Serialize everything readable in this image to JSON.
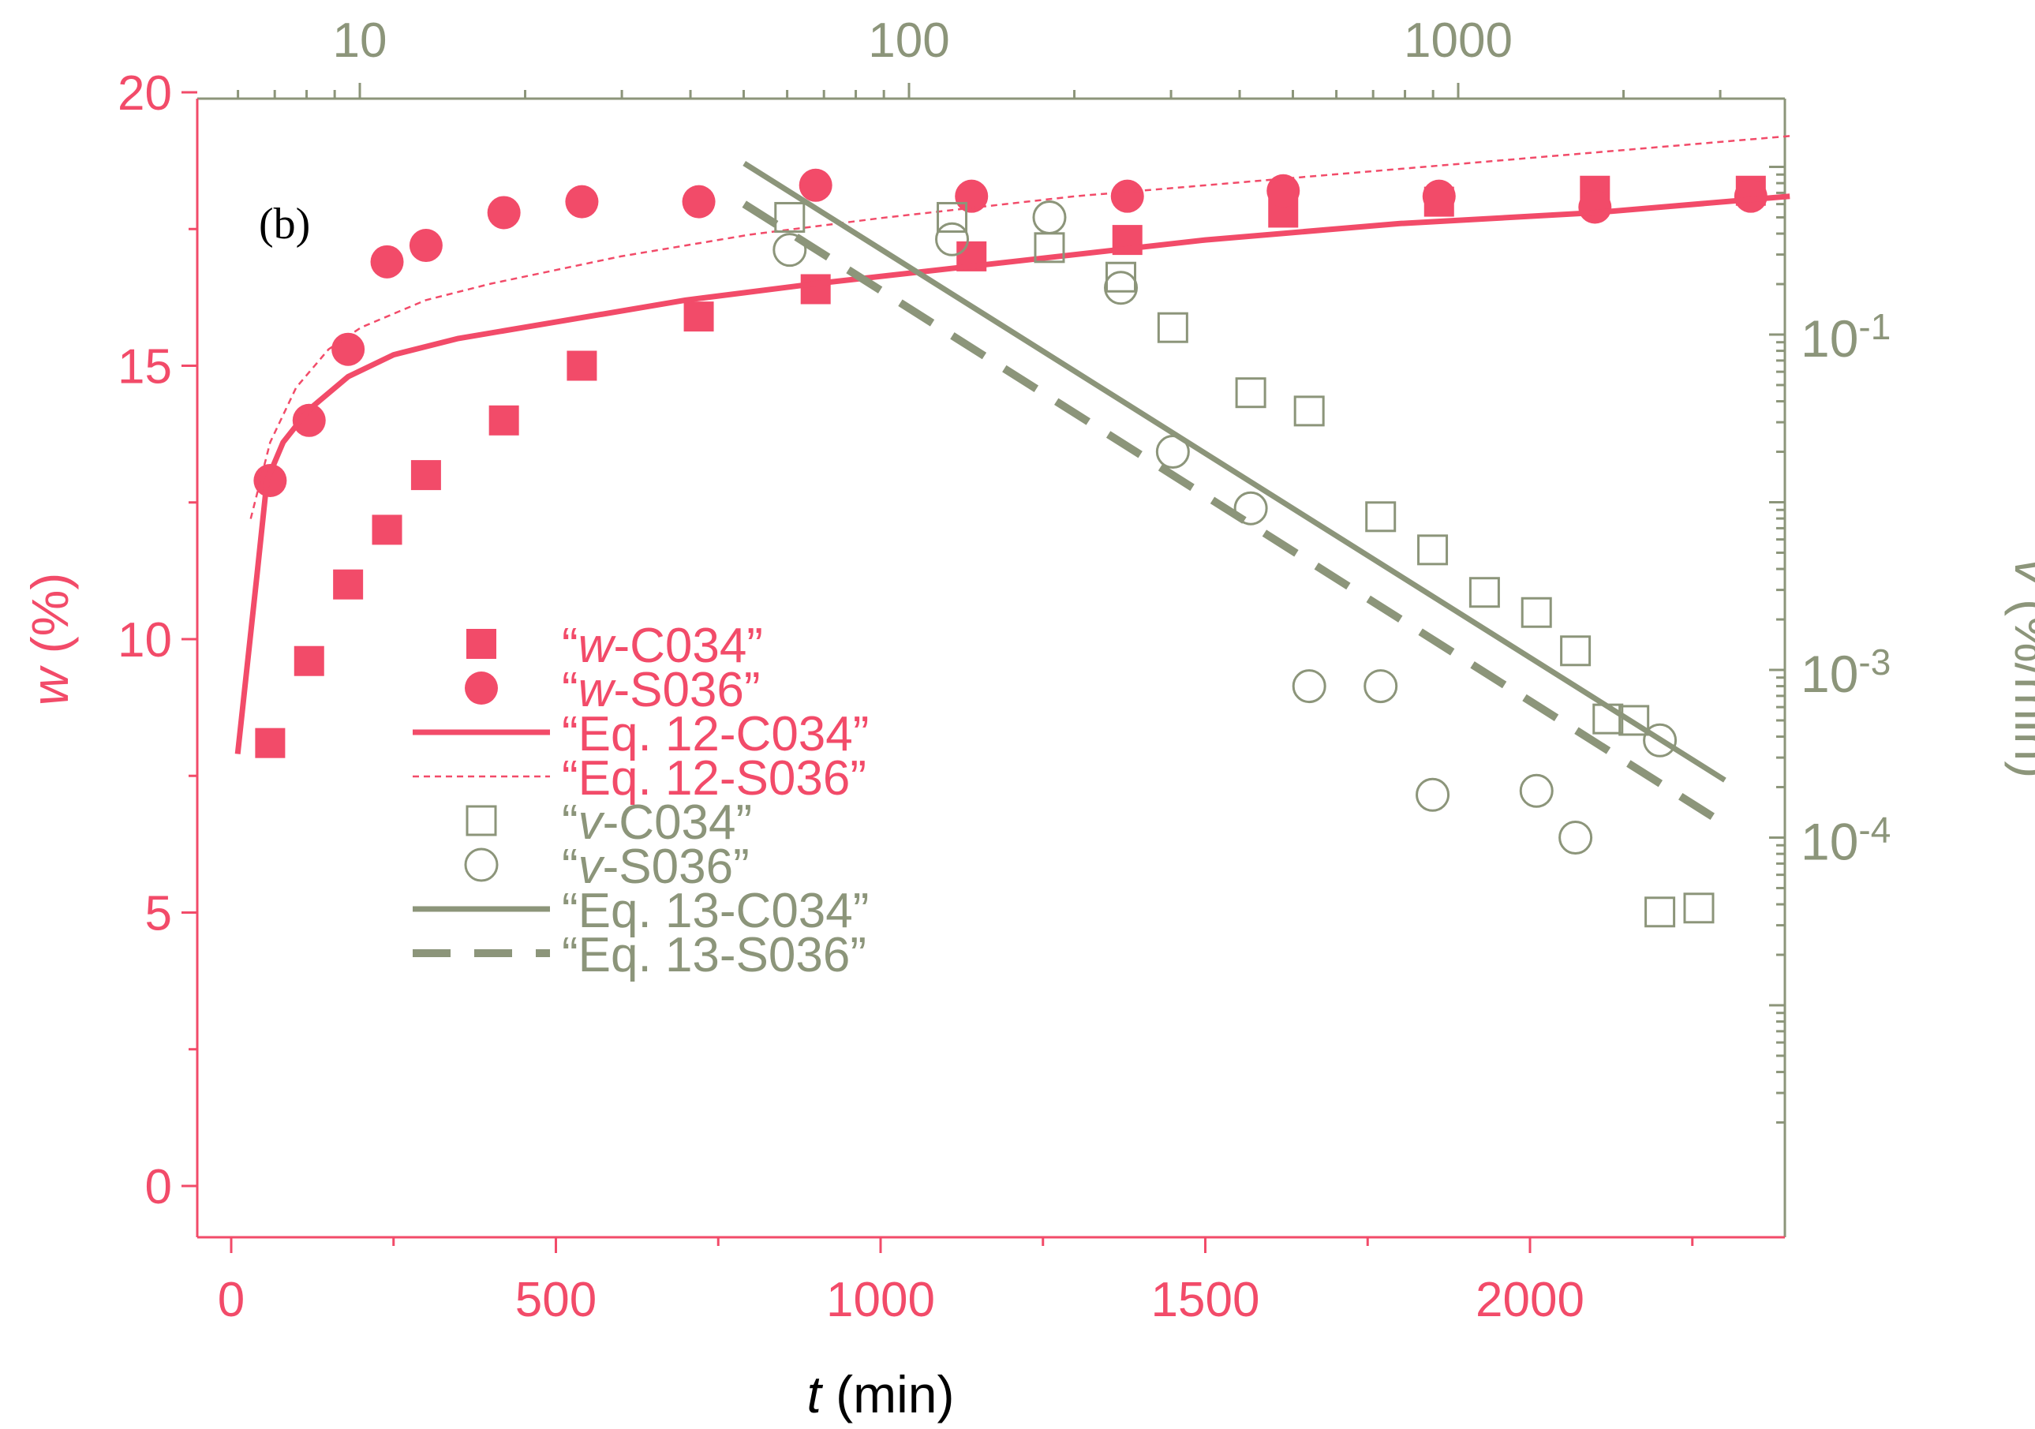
{
  "colors": {
    "pink": "#f24b69",
    "olive": "#8c957a",
    "frame": "#8c957a",
    "black": "#000000"
  },
  "chart_data": {
    "type": "scatter",
    "panel_label": "(b)",
    "x_axis": {
      "label_italic": "t",
      "label_rest": " (min)",
      "range": [
        -50,
        2400
      ],
      "ticks": [
        0,
        500,
        1000,
        1500,
        2000
      ],
      "tick_labels": [
        "0",
        "500",
        "1000",
        "1500",
        "2000"
      ]
    },
    "top_axis": {
      "scale": "log",
      "ticks": [
        10,
        100,
        1000
      ],
      "tick_labels": [
        "10",
        "100",
        "1000"
      ]
    },
    "y_left": {
      "label_italic": "w",
      "label_rest": " (%)",
      "range": [
        -1,
        20
      ],
      "ticks": [
        0,
        5,
        10,
        15,
        20
      ],
      "tick_labels": [
        "0",
        "5",
        "10",
        "15",
        "20"
      ]
    },
    "y_right": {
      "scale": "log",
      "label_italic": "v",
      "label_rest": " (%/min)",
      "ticks": [
        0.1,
        0.001,
        0.0001
      ],
      "tick_base": "10",
      "tick_exponents": [
        "-1",
        "-3",
        "-4"
      ]
    },
    "legend": [
      {
        "prefix": "“",
        "italic": "w",
        "rest": "-C034”",
        "marker": "filled-square",
        "color": "pink"
      },
      {
        "prefix": "“",
        "italic": "w",
        "rest": "-S036”",
        "marker": "filled-circle",
        "color": "pink"
      },
      {
        "prefix": "“",
        "italic": "",
        "rest": "Eq. 12-C034”",
        "marker": "solid-line",
        "color": "pink"
      },
      {
        "prefix": "“",
        "italic": "",
        "rest": "Eq. 12-S036”",
        "marker": "dotted-line",
        "color": "pink"
      },
      {
        "prefix": "“",
        "italic": "v",
        "rest": "-C034”",
        "marker": "open-square",
        "color": "olive"
      },
      {
        "prefix": "“",
        "italic": "v",
        "rest": "-S036”",
        "marker": "open-circle",
        "color": "olive"
      },
      {
        "prefix": "“",
        "italic": "",
        "rest": "Eq. 13-C034”",
        "marker": "solid-line",
        "color": "olive"
      },
      {
        "prefix": "“",
        "italic": "",
        "rest": "Eq. 13-S036”",
        "marker": "dashed-line",
        "color": "olive"
      }
    ],
    "series": [
      {
        "name": "w-C034",
        "axis": "left",
        "style": "filled-square",
        "color": "pink",
        "x": [
          60,
          120,
          180,
          240,
          300,
          420,
          540,
          720,
          900,
          1140,
          1380,
          1620,
          1860,
          2100,
          2340
        ],
        "y": [
          8.1,
          9.6,
          11.0,
          12.0,
          13.0,
          14.0,
          15.0,
          15.9,
          16.4,
          17.0,
          17.3,
          17.8,
          18.0,
          18.2,
          18.2
        ]
      },
      {
        "name": "w-S036",
        "axis": "left",
        "style": "filled-circle",
        "color": "pink",
        "x": [
          60,
          120,
          180,
          240,
          300,
          420,
          540,
          720,
          900,
          1140,
          1380,
          1620,
          1860,
          2100,
          2340
        ],
        "y": [
          12.9,
          14.0,
          15.3,
          16.9,
          17.2,
          17.8,
          18.0,
          18.0,
          18.3,
          18.1,
          18.1,
          18.2,
          18.1,
          17.9,
          18.1
        ]
      },
      {
        "name": "Eq. 12-C034",
        "axis": "left",
        "style": "solid-line",
        "color": "pink",
        "x": [
          10,
          40,
          55,
          80,
          120,
          180,
          250,
          350,
          500,
          700,
          900,
          1200,
          1500,
          1800,
          2100,
          2400
        ],
        "y": [
          7.9,
          11.2,
          12.9,
          13.6,
          14.2,
          14.8,
          15.2,
          15.5,
          15.8,
          16.2,
          16.5,
          16.9,
          17.3,
          17.6,
          17.8,
          18.1
        ]
      },
      {
        "name": "Eq. 12-S036",
        "axis": "left",
        "style": "dotted-line",
        "color": "pink",
        "x": [
          30,
          60,
          100,
          150,
          200,
          300,
          400,
          600,
          800,
          1000,
          1300,
          1600,
          1900,
          2200,
          2400
        ],
        "y": [
          12.2,
          13.6,
          14.6,
          15.3,
          15.7,
          16.2,
          16.5,
          17.0,
          17.4,
          17.7,
          18.1,
          18.4,
          18.7,
          19.0,
          19.2
        ]
      },
      {
        "name": "v-C034",
        "axis": "right",
        "style": "open-square",
        "color": "olive",
        "x": [
          860,
          1110,
          1260,
          1370,
          1450,
          1570,
          1660,
          1770,
          1850,
          1930,
          2010,
          2070,
          2120,
          2160,
          2200,
          2260
        ],
        "y": [
          0.5,
          0.5,
          0.33,
          0.22,
          0.11,
          0.045,
          0.035,
          0.0082,
          0.0052,
          0.0029,
          0.0022,
          0.0013,
          0.00051,
          0.0005,
          3.6e-05,
          3.8e-05
        ]
      },
      {
        "name": "v-S036",
        "axis": "right",
        "style": "open-circle",
        "color": "olive",
        "x": [
          860,
          1110,
          1260,
          1370,
          1450,
          1570,
          1660,
          1770,
          1850,
          2010,
          2070,
          2200
        ],
        "y": [
          0.32,
          0.37,
          0.5,
          0.19,
          0.02,
          0.0092,
          0.0008,
          0.0008,
          0.00018,
          0.00019,
          0.0001,
          0.00038
        ]
      },
      {
        "name": "Eq. 13-C034",
        "axis": "right",
        "style": "solid-line",
        "color": "olive",
        "x": [
          790,
          2300
        ],
        "y": [
          1.05,
          0.00022
        ]
      },
      {
        "name": "Eq. 13-S036",
        "axis": "right",
        "style": "dashed-line",
        "color": "olive",
        "x": [
          790,
          2300
        ],
        "y": [
          0.6,
          0.00012
        ]
      }
    ]
  }
}
